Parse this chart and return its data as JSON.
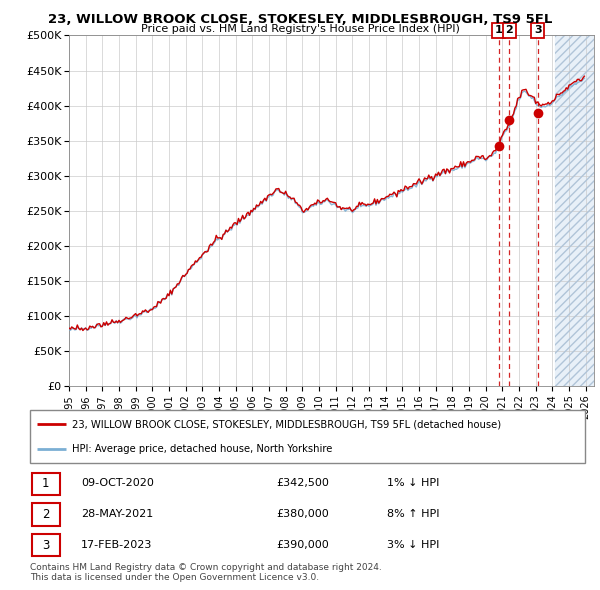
{
  "title": "23, WILLOW BROOK CLOSE, STOKESLEY, MIDDLESBROUGH, TS9 5FL",
  "subtitle": "Price paid vs. HM Land Registry's House Price Index (HPI)",
  "ylim": [
    0,
    500000
  ],
  "yticks": [
    0,
    50000,
    100000,
    150000,
    200000,
    250000,
    300000,
    350000,
    400000,
    450000,
    500000
  ],
  "ytick_labels": [
    "£0",
    "£50K",
    "£100K",
    "£150K",
    "£200K",
    "£250K",
    "£300K",
    "£350K",
    "£400K",
    "£450K",
    "£500K"
  ],
  "xlim_start": 1995.0,
  "xlim_end": 2026.5,
  "hpi_color": "#7bafd4",
  "price_color": "#cc0000",
  "dot_color": "#cc0000",
  "transaction_dates": [
    2020.78,
    2021.41,
    2023.12
  ],
  "transaction_prices": [
    342500,
    380000,
    390000
  ],
  "transaction_labels": [
    "1",
    "2",
    "3"
  ],
  "legend_line1": "23, WILLOW BROOK CLOSE, STOKESLEY, MIDDLESBROUGH, TS9 5FL (detached house)",
  "legend_line2": "HPI: Average price, detached house, North Yorkshire",
  "table_data": [
    [
      "1",
      "09-OCT-2020",
      "£342,500",
      "1% ↓ HPI"
    ],
    [
      "2",
      "28-MAY-2021",
      "£380,000",
      "8% ↑ HPI"
    ],
    [
      "3",
      "17-FEB-2023",
      "£390,000",
      "3% ↓ HPI"
    ]
  ],
  "footnote": "Contains HM Land Registry data © Crown copyright and database right 2024.\nThis data is licensed under the Open Government Licence v3.0.",
  "background_color": "#ffffff",
  "grid_color": "#cccccc",
  "future_shade_color": "#e8f0f8",
  "hatch_color": "#b0c4d8",
  "future_start": 2024.17
}
